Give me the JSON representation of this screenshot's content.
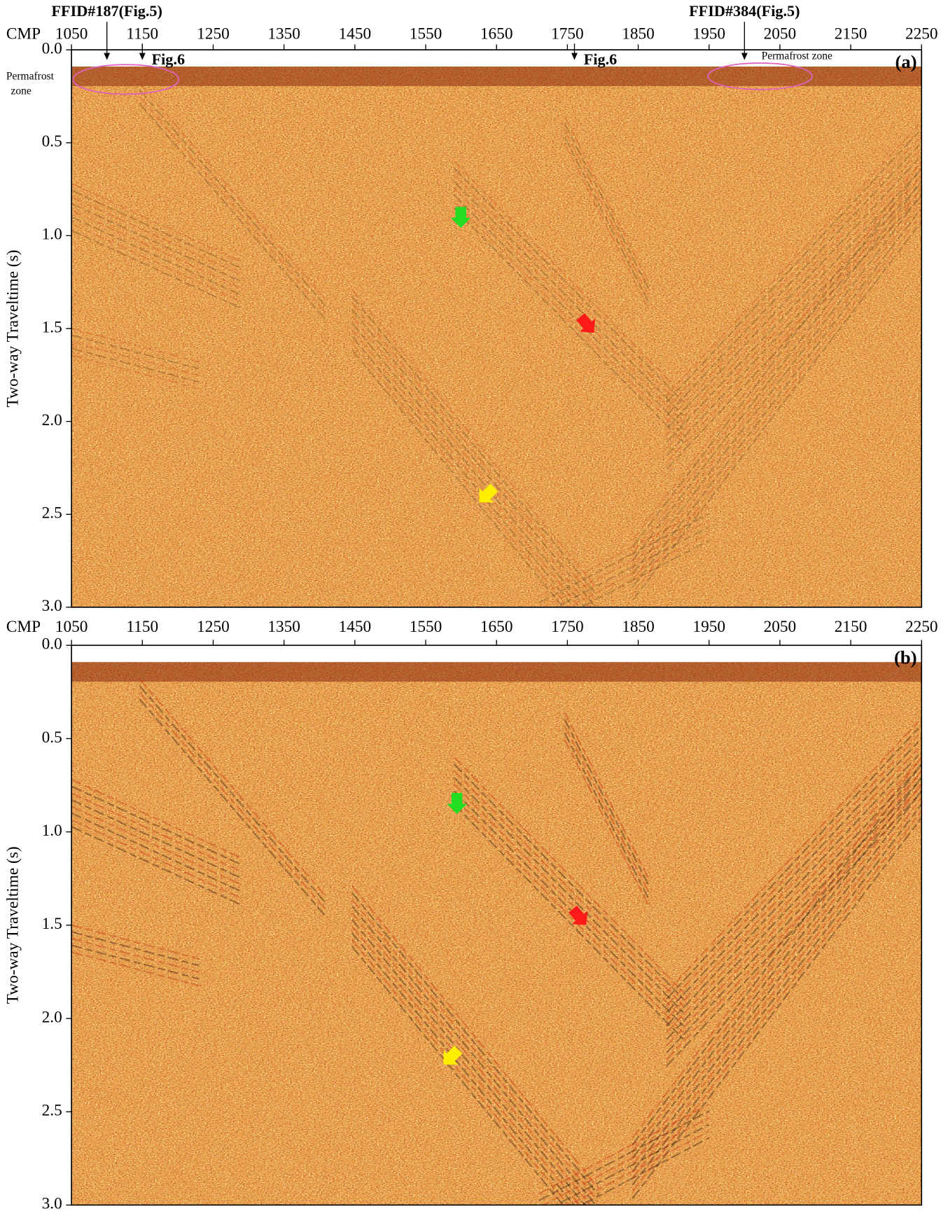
{
  "chart_data": [
    {
      "type": "seismic",
      "panel_label": "(a)",
      "x_label": "CMP",
      "y_label": "Two-way Traveltime (s)",
      "xlim": [
        1050,
        2250
      ],
      "xticks": [
        1050,
        1150,
        1250,
        1350,
        1450,
        1550,
        1650,
        1750,
        1850,
        1950,
        2050,
        2150,
        2250
      ],
      "ylim": [
        0,
        3.0
      ],
      "yticks": [
        {
          "value": 0,
          "label": "0.0"
        },
        0.5,
        {
          "value": 1,
          "label": "1.0"
        },
        1.5,
        {
          "value": 2,
          "label": "2.0"
        },
        2.5,
        {
          "value": 3,
          "label": "3.0"
        }
      ],
      "markers": [
        {
          "label": "FFID#187(Fig.5)",
          "cmp": 1100
        },
        {
          "label": "Fig.6",
          "cmp": 1150
        },
        {
          "label": "Fig.6",
          "cmp": 1760
        },
        {
          "label": "FFID#384(Fig.5)",
          "cmp": 2000
        }
      ],
      "permafrost_labels": [
        [
          "Permafrost",
          "zone"
        ],
        [
          "Permafrost zone"
        ]
      ]
    },
    {
      "type": "seismic",
      "panel_label": "(b)",
      "x_label": "CMP",
      "y_label": "Two-way Traveltime (s)",
      "xlim": [
        1050,
        2250
      ],
      "xticks": [
        1050,
        1150,
        1250,
        1350,
        1450,
        1550,
        1650,
        1750,
        1850,
        1950,
        2050,
        2150,
        2250
      ],
      "ylim": [
        0,
        3.0
      ],
      "yticks": [
        {
          "value": 0,
          "label": "0.0"
        },
        0.5,
        {
          "value": 1,
          "label": "1.0"
        },
        1.5,
        {
          "value": 2,
          "label": "2.0"
        },
        2.5,
        {
          "value": 3,
          "label": "3.0"
        }
      ]
    }
  ]
}
